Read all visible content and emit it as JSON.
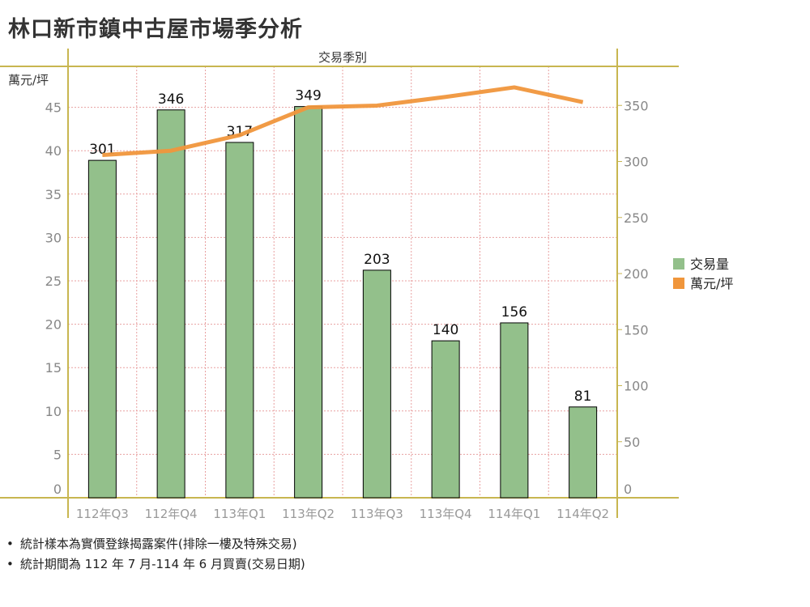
{
  "title": "林口新市鎮中古屋市場季分析",
  "chart_data": {
    "type": "bar+line",
    "title": "林口新市鎮中古屋市場季分析",
    "xlabel": "交易季別",
    "ylabel_left": "萬元/坪",
    "categories": [
      "112年Q3",
      "112年Q4",
      "113年Q1",
      "113年Q2",
      "113年Q3",
      "113年Q4",
      "114年Q1",
      "114年Q2"
    ],
    "series": [
      {
        "name": "交易量",
        "type": "bar",
        "axis": "right",
        "color": "#93c08b",
        "values": [
          301,
          346,
          317,
          349,
          203,
          140,
          156,
          81
        ]
      },
      {
        "name": "萬元/坪",
        "type": "line",
        "axis": "left",
        "color": "#f0963c",
        "values": [
          39.5,
          40.0,
          41.8,
          45.0,
          45.2,
          46.2,
          47.3,
          45.6
        ]
      }
    ],
    "left_ticks": [
      0,
      5,
      10,
      15,
      20,
      25,
      30,
      35,
      40,
      45
    ],
    "right_ticks": [
      0,
      50,
      100,
      150,
      200,
      250,
      300,
      350
    ],
    "grid": true,
    "legend": "right"
  },
  "notes": [
    "統計樣本為實價登錄揭露案件(排除一樓及特殊交易)",
    "統計期間為 112 年 7 月-114 年 6 月買賣(交易日期)"
  ]
}
